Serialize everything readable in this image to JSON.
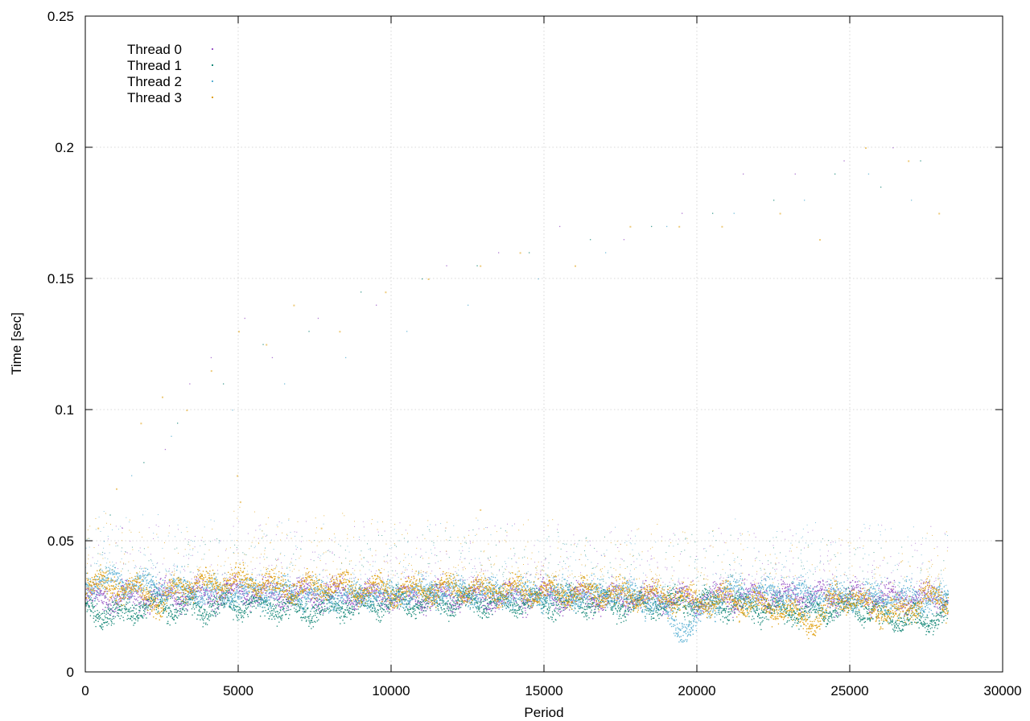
{
  "chart_data": {
    "type": "scatter",
    "title": "",
    "xlabel": "Period",
    "ylabel": "Time [sec]",
    "xlim": [
      0,
      30000
    ],
    "ylim": [
      0,
      0.25
    ],
    "xticks": [
      0,
      5000,
      10000,
      15000,
      20000,
      25000,
      30000
    ],
    "yticks": [
      0,
      0.05,
      0.1,
      0.15,
      0.2,
      0.25
    ],
    "xtick_labels": [
      "0",
      "5000",
      "10000",
      "15000",
      "20000",
      "25000",
      "30000"
    ],
    "ytick_labels": [
      "0",
      "0.05",
      "0.1",
      "0.15",
      "0.2",
      "0.25"
    ],
    "grid": true,
    "legend_position": "top-left",
    "x_max_data": 28200,
    "series": [
      {
        "name": "Thread 0",
        "color": "#9b59c7",
        "baseline": [
          [
            0,
            0.028
          ],
          [
            2000,
            0.029
          ],
          [
            5000,
            0.03
          ],
          [
            8000,
            0.03
          ],
          [
            10000,
            0.029
          ],
          [
            15000,
            0.029
          ],
          [
            20000,
            0.028
          ],
          [
            22000,
            0.029
          ],
          [
            25000,
            0.029
          ],
          [
            26500,
            0.028
          ],
          [
            27500,
            0.029
          ],
          [
            28200,
            0.028
          ]
        ],
        "outliers": [
          [
            1200,
            0.055
          ],
          [
            2600,
            0.085
          ],
          [
            3400,
            0.11
          ],
          [
            4100,
            0.12
          ],
          [
            5200,
            0.135
          ],
          [
            6100,
            0.12
          ],
          [
            7600,
            0.135
          ],
          [
            9500,
            0.14
          ],
          [
            11800,
            0.155
          ],
          [
            13500,
            0.16
          ],
          [
            15500,
            0.17
          ],
          [
            17600,
            0.165
          ],
          [
            19500,
            0.175
          ],
          [
            21500,
            0.19
          ],
          [
            23200,
            0.19
          ],
          [
            24800,
            0.195
          ],
          [
            26400,
            0.2
          ]
        ]
      },
      {
        "name": "Thread 1",
        "color": "#1a8a7a",
        "baseline": [
          [
            0,
            0.024
          ],
          [
            1000,
            0.022
          ],
          [
            2000,
            0.026
          ],
          [
            3500,
            0.025
          ],
          [
            5000,
            0.026
          ],
          [
            7000,
            0.024
          ],
          [
            10000,
            0.027
          ],
          [
            15000,
            0.027
          ],
          [
            18000,
            0.026
          ],
          [
            20000,
            0.027
          ],
          [
            22500,
            0.024
          ],
          [
            24000,
            0.023
          ],
          [
            25000,
            0.026
          ],
          [
            26500,
            0.02
          ],
          [
            27500,
            0.02
          ],
          [
            28200,
            0.023
          ]
        ],
        "outliers": [
          [
            800,
            0.06
          ],
          [
            1900,
            0.08
          ],
          [
            3000,
            0.095
          ],
          [
            4500,
            0.11
          ],
          [
            5800,
            0.125
          ],
          [
            7300,
            0.13
          ],
          [
            9000,
            0.145
          ],
          [
            11000,
            0.15
          ],
          [
            12800,
            0.155
          ],
          [
            14500,
            0.16
          ],
          [
            16500,
            0.165
          ],
          [
            18500,
            0.17
          ],
          [
            20500,
            0.175
          ],
          [
            22500,
            0.18
          ],
          [
            24500,
            0.19
          ],
          [
            26000,
            0.185
          ],
          [
            27300,
            0.195
          ]
        ]
      },
      {
        "name": "Thread 2",
        "color": "#5ab0d3",
        "baseline": [
          [
            0,
            0.034
          ],
          [
            1000,
            0.035
          ],
          [
            2000,
            0.033
          ],
          [
            3000,
            0.032
          ],
          [
            4500,
            0.03
          ],
          [
            6000,
            0.031
          ],
          [
            8000,
            0.029
          ],
          [
            10000,
            0.03
          ],
          [
            12000,
            0.031
          ],
          [
            15000,
            0.03
          ],
          [
            17500,
            0.03
          ],
          [
            18800,
            0.026
          ],
          [
            19300,
            0.019
          ],
          [
            19800,
            0.016
          ],
          [
            20300,
            0.025
          ],
          [
            21000,
            0.031
          ],
          [
            23000,
            0.03
          ],
          [
            25000,
            0.029
          ],
          [
            27000,
            0.028
          ],
          [
            28200,
            0.027
          ]
        ],
        "outliers": [
          [
            600,
            0.05
          ],
          [
            1500,
            0.075
          ],
          [
            2800,
            0.09
          ],
          [
            4800,
            0.1
          ],
          [
            6500,
            0.11
          ],
          [
            8500,
            0.12
          ],
          [
            10500,
            0.13
          ],
          [
            12500,
            0.14
          ],
          [
            14800,
            0.15
          ],
          [
            17000,
            0.16
          ],
          [
            19000,
            0.17
          ],
          [
            21200,
            0.175
          ],
          [
            23500,
            0.18
          ],
          [
            25600,
            0.19
          ],
          [
            27000,
            0.18
          ]
        ]
      },
      {
        "name": "Thread 3",
        "color": "#e0a010",
        "baseline": [
          [
            0,
            0.034
          ],
          [
            1000,
            0.033
          ],
          [
            2000,
            0.03
          ],
          [
            2500,
            0.025
          ],
          [
            3000,
            0.033
          ],
          [
            5000,
            0.035
          ],
          [
            7000,
            0.032
          ],
          [
            8000,
            0.033
          ],
          [
            10000,
            0.031
          ],
          [
            12000,
            0.032
          ],
          [
            15000,
            0.031
          ],
          [
            17000,
            0.03
          ],
          [
            19000,
            0.029
          ],
          [
            20000,
            0.027
          ],
          [
            21000,
            0.028
          ],
          [
            22500,
            0.025
          ],
          [
            23200,
            0.022
          ],
          [
            24000,
            0.019
          ],
          [
            24500,
            0.03
          ],
          [
            26000,
            0.024
          ],
          [
            26500,
            0.022
          ],
          [
            27500,
            0.03
          ],
          [
            28200,
            0.026
          ]
        ],
        "outliers": [
          [
            400,
            0.055
          ],
          [
            1000,
            0.07
          ],
          [
            1800,
            0.095
          ],
          [
            2500,
            0.105
          ],
          [
            3300,
            0.1
          ],
          [
            4100,
            0.115
          ],
          [
            5000,
            0.13
          ],
          [
            5900,
            0.125
          ],
          [
            6800,
            0.14
          ],
          [
            8300,
            0.13
          ],
          [
            9800,
            0.145
          ],
          [
            11200,
            0.15
          ],
          [
            12900,
            0.155
          ],
          [
            14200,
            0.16
          ],
          [
            16000,
            0.155
          ],
          [
            17800,
            0.17
          ],
          [
            19400,
            0.17
          ],
          [
            20800,
            0.17
          ],
          [
            22700,
            0.175
          ],
          [
            24000,
            0.165
          ],
          [
            25500,
            0.2
          ],
          [
            26900,
            0.195
          ],
          [
            27900,
            0.175
          ],
          [
            4950,
            0.075
          ],
          [
            5050,
            0.065
          ],
          [
            7700,
            0.055
          ],
          [
            12900,
            0.062
          ]
        ]
      }
    ]
  }
}
